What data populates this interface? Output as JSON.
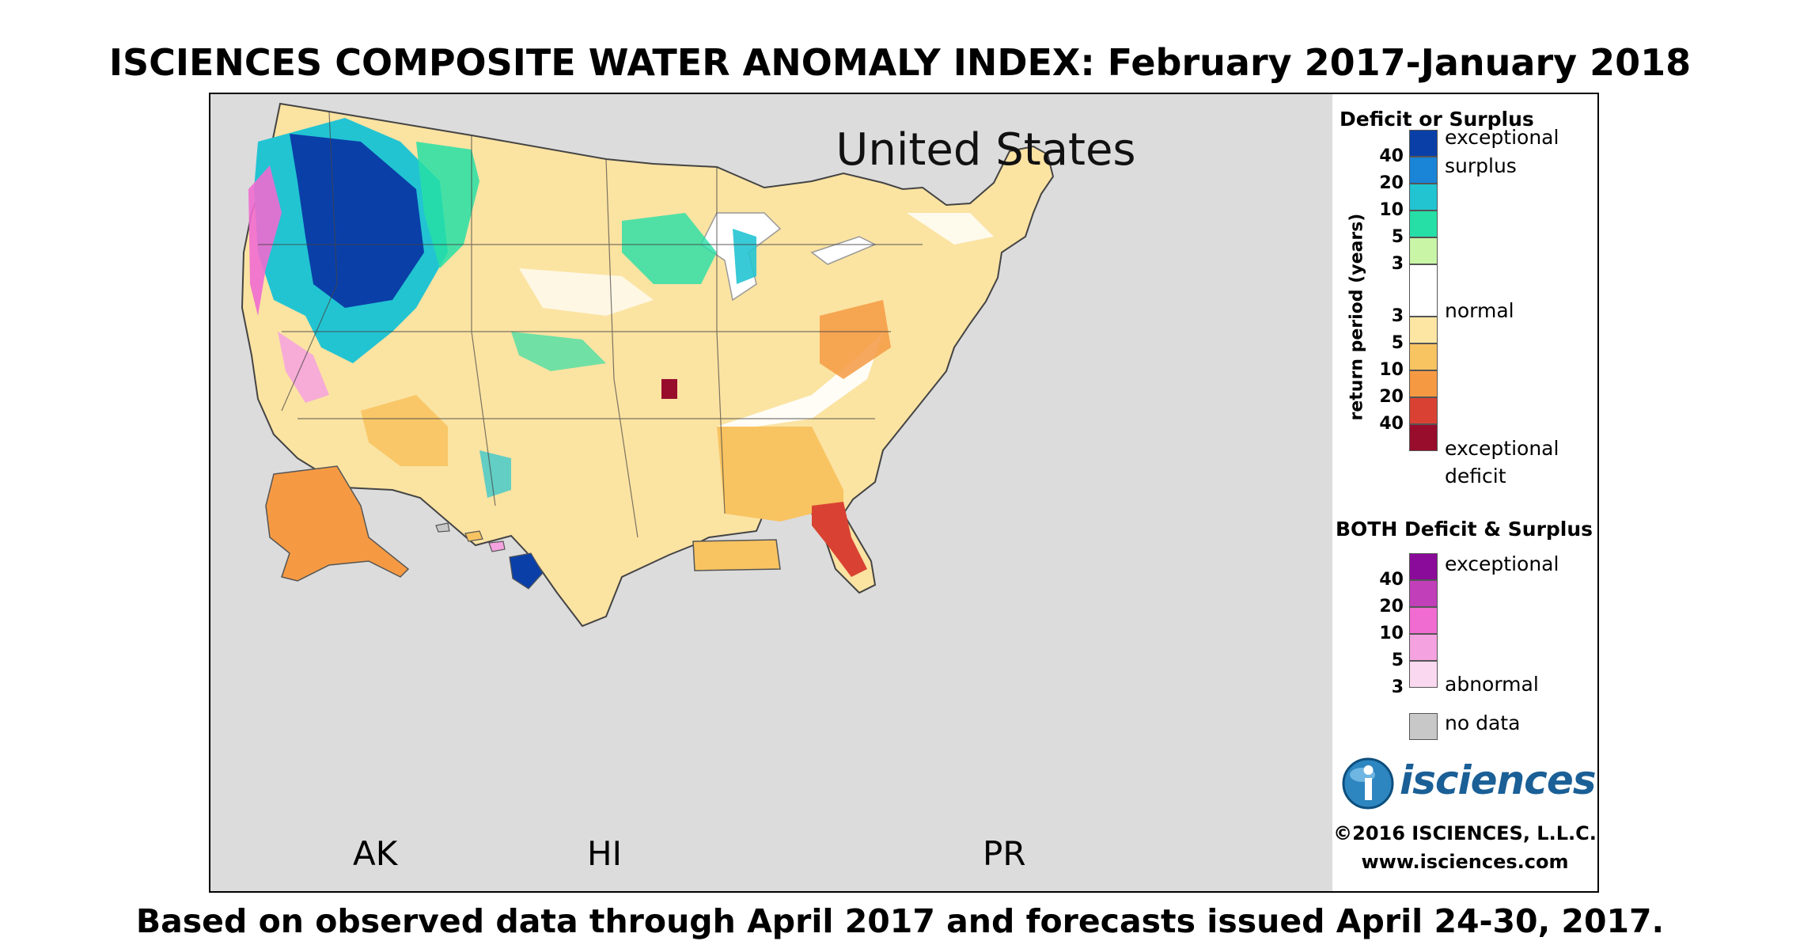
{
  "title": "ISCIENCES COMPOSITE WATER ANOMALY INDEX: February 2017-January 2018",
  "footer": "Based on observed data through April 2017 and forecasts issued April 24-30, 2017.",
  "map": {
    "region_title": "United States",
    "inset_labels": {
      "ak": "AK",
      "hi": "HI",
      "pr": "PR"
    }
  },
  "legend": {
    "deficit_surplus_heading": "Deficit or Surplus",
    "axis_label": "return period (years)",
    "surplus_numbers": [
      "40",
      "20",
      "10",
      "5",
      "3"
    ],
    "deficit_numbers": [
      "3",
      "5",
      "10",
      "20",
      "40"
    ],
    "label_exceptional_surplus_1": "exceptional",
    "label_exceptional_surplus_2": "surplus",
    "label_normal": "normal",
    "label_exceptional_deficit_1": "exceptional",
    "label_exceptional_deficit_2": "deficit",
    "both_heading": "BOTH Deficit & Surplus",
    "both_numbers": [
      "40",
      "20",
      "10",
      "5",
      "3"
    ],
    "label_both_exceptional": "exceptional",
    "label_both_abnormal": "abnormal",
    "label_no_data": "no data",
    "colors": {
      "surplus": [
        "#0a3fa8",
        "#1a84d6",
        "#22c4d2",
        "#26dfa6",
        "#c8f5a6"
      ],
      "normal": "#ffffff",
      "deficit": [
        "#fde6a3",
        "#f8c361",
        "#f59a43",
        "#d94232",
        "#980d2c"
      ],
      "both": [
        "#8a0a9a",
        "#c13fb8",
        "#f06cd0",
        "#f5a2e0",
        "#fad8ef"
      ],
      "no_data": "#c8c8c8"
    }
  },
  "logo": {
    "text": "isciences",
    "letter": "i"
  },
  "copyright": "©2016 ISCIENCES, L.L.C.",
  "website": "www.isciences.com"
}
